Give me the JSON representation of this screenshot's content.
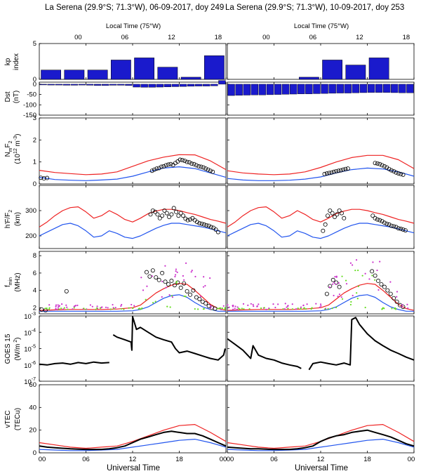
{
  "figure": {
    "titles": [
      "La Serena (29.9°S; 71.3°W), 06-09-2017, doy 249",
      "La Serena (29.9°S; 71.3°W), 10-09-2017, doy 253"
    ],
    "top_axis_label": "Local Time (75°W)",
    "top_ticks": [
      "00",
      "06",
      "12",
      "18"
    ],
    "bottom_ticks": [
      "00",
      "06",
      "12",
      "18",
      "00"
    ],
    "xlabel": "Universal Time"
  },
  "ylabels": {
    "kp": [
      "kp",
      "index"
    ],
    "dst": [
      "Dst",
      "(nT)"
    ],
    "nmf2": [
      "N",
      "m",
      "F",
      "2",
      "(10",
      "12",
      " m",
      "-3",
      ")"
    ],
    "hmf2": [
      "h'F/F",
      "2",
      "(km)"
    ],
    "fmin": [
      "f",
      "min",
      "(MHz)"
    ],
    "goes": [
      "GOES 15",
      "(W/m",
      " 2",
      ")"
    ],
    "vtec": [
      "vTEC",
      "(TECu)"
    ]
  },
  "colors": {
    "bar": "#1a1acc",
    "model_max": "#ee2222",
    "model_min": "#2255ee",
    "obs": "#000000",
    "scatter_magenta": "#cc33cc",
    "scatter_green": "#66dd22"
  },
  "chart_data": [
    {
      "panel": "kp",
      "type": "bar",
      "ylim": [
        0,
        5
      ],
      "yticks": [
        "0",
        "5"
      ],
      "x_hours": [
        1.5,
        4.5,
        7.5,
        10.5,
        13.5,
        16.5,
        19.5,
        22.5
      ],
      "day249": [
        1.3,
        1.3,
        1.3,
        2.7,
        3.0,
        1.7,
        0.3,
        3.3
      ],
      "day253": [
        0,
        0,
        0,
        0.3,
        2.7,
        2.0,
        3.0,
        0
      ]
    },
    {
      "panel": "dst",
      "type": "bar",
      "ylim": [
        -150,
        10
      ],
      "yticks": [
        "0",
        "-50",
        "-100",
        "-150"
      ],
      "x_hours": [
        0.5,
        1.5,
        2.5,
        3.5,
        4.5,
        5.5,
        6.5,
        7.5,
        8.5,
        9.5,
        10.5,
        11.5,
        12.5,
        13.5,
        14.5,
        15.5,
        16.5,
        17.5,
        18.5,
        19.5,
        20.5,
        21.5,
        22.5,
        23.5
      ],
      "day249": [
        -3,
        -4,
        -4,
        -5,
        -5,
        -4,
        -5,
        -6,
        -6,
        -5,
        -5,
        -6,
        -14,
        -15,
        -15,
        -14,
        -13,
        -12,
        -11,
        -10,
        -9,
        -9,
        -8,
        18
      ],
      "day253": [
        -55,
        -54,
        -53,
        -52,
        -52,
        -51,
        -50,
        -49,
        -48,
        -47,
        -47,
        -46,
        -45,
        -44,
        -43,
        -43,
        -42,
        -41,
        -40,
        -40,
        -40,
        -41,
        -42,
        -42
      ]
    },
    {
      "panel": "nmf2",
      "type": "line+scatter",
      "ylim": [
        0,
        3
      ],
      "yticks": [
        "0",
        "1",
        "2",
        "3"
      ],
      "model_hours": [
        0,
        2,
        4,
        6,
        8,
        10,
        12,
        14,
        16,
        18,
        20,
        22,
        24
      ],
      "day249": {
        "model_max": [
          0.62,
          0.52,
          0.47,
          0.42,
          0.45,
          0.55,
          0.8,
          1.05,
          1.22,
          1.33,
          1.32,
          1.05,
          0.65
        ],
        "model_min": [
          0.3,
          0.2,
          0.17,
          0.15,
          0.18,
          0.22,
          0.35,
          0.55,
          0.72,
          0.78,
          0.7,
          0.5,
          0.3
        ],
        "obs_hours": [
          0.2,
          0.6,
          1.0,
          14.5,
          14.8,
          15.1,
          15.4,
          15.7,
          16.0,
          16.3,
          16.6,
          16.9,
          17.2,
          17.5,
          17.8,
          18.1,
          18.4,
          18.7,
          19.0,
          19.3,
          19.6,
          19.9,
          20.2,
          20.5,
          20.8,
          21.1,
          21.4,
          21.7,
          22.0,
          22.3
        ],
        "obs_values": [
          0.28,
          0.25,
          0.27,
          0.6,
          0.65,
          0.7,
          0.72,
          0.78,
          0.8,
          0.85,
          0.88,
          0.9,
          0.86,
          0.95,
          1.02,
          1.1,
          1.08,
          1.05,
          1.0,
          0.98,
          0.92,
          0.9,
          0.85,
          0.8,
          0.78,
          0.75,
          0.7,
          0.65,
          0.6,
          0.55
        ]
      },
      "day253": {
        "model_max": [
          0.6,
          0.5,
          0.45,
          0.42,
          0.45,
          0.55,
          0.75,
          1.0,
          1.2,
          1.3,
          1.3,
          1.1,
          0.7
        ],
        "model_min": [
          0.25,
          0.18,
          0.15,
          0.15,
          0.17,
          0.22,
          0.32,
          0.5,
          0.65,
          0.72,
          0.68,
          0.55,
          0.35
        ],
        "obs_hours": [
          12.5,
          12.8,
          13.1,
          13.4,
          13.7,
          14.0,
          14.3,
          14.6,
          14.9,
          15.2,
          15.5,
          19.0,
          19.3,
          19.6,
          19.9,
          20.2,
          20.5,
          20.8,
          21.1,
          21.4,
          21.7,
          22.0,
          22.3,
          22.6
        ],
        "obs_values": [
          0.45,
          0.48,
          0.5,
          0.52,
          0.55,
          0.58,
          0.6,
          0.62,
          0.65,
          0.68,
          0.7,
          0.95,
          0.93,
          0.9,
          0.85,
          0.8,
          0.75,
          0.68,
          0.62,
          0.58,
          0.52,
          0.48,
          0.45,
          0.42
        ]
      }
    },
    {
      "panel": "hmf2",
      "type": "line+scatter",
      "ylim": [
        150,
        400
      ],
      "yticks": [
        "200",
        "300"
      ],
      "model_hours": [
        0,
        1,
        2,
        3,
        4,
        5,
        6,
        7,
        8,
        9,
        10,
        11,
        12,
        13,
        14,
        15,
        16,
        17,
        18,
        19,
        20,
        21,
        22,
        23,
        24
      ],
      "day249": {
        "model_max": [
          235,
          255,
          280,
          300,
          312,
          315,
          295,
          270,
          280,
          300,
          285,
          265,
          255,
          270,
          288,
          298,
          305,
          305,
          300,
          292,
          285,
          275,
          265,
          258,
          250
        ],
        "model_min": [
          200,
          215,
          230,
          245,
          250,
          240,
          220,
          195,
          200,
          220,
          210,
          195,
          190,
          200,
          215,
          230,
          242,
          250,
          250,
          245,
          240,
          235,
          228,
          220,
          212
        ],
        "obs_hours": [
          14.3,
          14.6,
          14.9,
          15.2,
          15.5,
          15.8,
          16.1,
          16.4,
          16.7,
          17.0,
          17.3,
          17.6,
          17.9,
          18.2,
          18.5,
          18.8,
          19.1,
          19.4,
          19.7,
          20.0,
          20.3,
          20.6,
          20.9,
          21.2,
          21.5,
          21.8,
          22.1,
          22.4,
          22.7,
          23.0
        ],
        "obs_values": [
          285,
          300,
          295,
          285,
          270,
          280,
          300,
          290,
          275,
          285,
          310,
          295,
          280,
          290,
          280,
          268,
          262,
          265,
          270,
          262,
          255,
          250,
          248,
          245,
          242,
          240,
          235,
          232,
          225,
          215
        ]
      },
      "day253": {
        "model_max": [
          235,
          255,
          280,
          300,
          312,
          315,
          295,
          270,
          280,
          300,
          285,
          265,
          255,
          270,
          288,
          298,
          305,
          305,
          300,
          292,
          285,
          275,
          265,
          258,
          250
        ],
        "model_min": [
          200,
          215,
          230,
          245,
          250,
          240,
          220,
          195,
          200,
          220,
          210,
          195,
          190,
          200,
          215,
          230,
          242,
          250,
          250,
          245,
          240,
          235,
          228,
          220,
          212
        ],
        "obs_hours": [
          12.3,
          12.6,
          12.9,
          13.2,
          13.5,
          13.8,
          14.1,
          14.4,
          14.7,
          15.0,
          18.7,
          19.0,
          19.3,
          19.6,
          19.9,
          20.2,
          20.5,
          20.8,
          21.1,
          21.4,
          21.7,
          22.0,
          22.3,
          22.6,
          22.9
        ],
        "obs_values": [
          220,
          245,
          280,
          300,
          290,
          275,
          285,
          300,
          290,
          270,
          280,
          270,
          265,
          262,
          258,
          252,
          248,
          245,
          240,
          238,
          235,
          230,
          228,
          225,
          222
        ]
      }
    },
    {
      "panel": "fmin",
      "type": "line+scatter",
      "ylim": [
        1.3,
        8.5
      ],
      "yticks": [
        "2",
        "4",
        "6",
        "8"
      ],
      "model_hours": [
        0,
        2,
        4,
        6,
        8,
        10,
        12,
        13,
        14,
        15,
        16,
        17,
        18,
        19,
        20,
        21,
        22,
        23,
        24
      ],
      "day249": {
        "model_max": [
          1.7,
          1.75,
          1.8,
          1.8,
          1.8,
          1.85,
          2.0,
          2.3,
          3.0,
          3.7,
          4.2,
          4.6,
          4.8,
          4.7,
          4.0,
          3.2,
          2.4,
          1.9,
          1.7
        ],
        "model_min": [
          1.6,
          1.6,
          1.6,
          1.6,
          1.6,
          1.6,
          1.65,
          1.8,
          2.1,
          2.6,
          3.1,
          3.4,
          3.5,
          3.2,
          2.6,
          2.1,
          1.8,
          1.6,
          1.6
        ],
        "obs_hours": [
          0.3,
          0.8,
          3.5,
          13.8,
          14.2,
          14.6,
          15.0,
          15.4,
          15.8,
          16.2,
          16.6,
          17.0,
          17.4,
          17.8,
          18.2,
          18.6,
          19.0,
          19.4,
          19.8,
          20.2,
          20.6,
          21.0,
          21.4,
          21.8,
          22.2,
          22.6
        ],
        "obs_values": [
          1.8,
          1.7,
          3.9,
          6.1,
          5.6,
          6.3,
          5.5,
          5.2,
          6.0,
          5.0,
          4.7,
          5.1,
          4.6,
          4.9,
          4.3,
          4.8,
          3.9,
          3.5,
          4.0,
          3.2,
          3.0,
          2.7,
          2.5,
          2.2,
          2.0,
          1.9
        ]
      },
      "day253": {
        "model_max": [
          1.7,
          1.75,
          1.8,
          1.8,
          1.8,
          1.85,
          2.0,
          2.3,
          3.0,
          3.7,
          4.2,
          4.6,
          4.8,
          4.7,
          4.0,
          3.2,
          2.4,
          1.9,
          1.7
        ],
        "model_min": [
          1.6,
          1.6,
          1.6,
          1.6,
          1.6,
          1.6,
          1.65,
          1.8,
          2.1,
          2.6,
          3.1,
          3.4,
          3.5,
          3.2,
          2.6,
          2.1,
          1.8,
          1.6,
          1.6
        ],
        "obs_hours": [
          12.8,
          13.2,
          13.6,
          14.0,
          14.4,
          18.6,
          19.0,
          19.4,
          19.8,
          20.2,
          20.6,
          21.0,
          21.4,
          21.8,
          22.2,
          22.6
        ],
        "obs_values": [
          3.6,
          4.5,
          5.2,
          4.9,
          4.4,
          6.2,
          5.7,
          5.1,
          4.7,
          4.4,
          4.0,
          3.6,
          3.1,
          2.7,
          2.3,
          2.1
        ]
      }
    },
    {
      "panel": "goes",
      "type": "line",
      "yscale": "log",
      "ylim": [
        1e-07,
        0.001
      ],
      "yticks": [
        "10-7",
        "10-6",
        "10-5",
        "10-4",
        "10-3"
      ],
      "day249": {
        "segments": [
          {
            "hours": [
              0,
              1,
              2,
              3,
              4,
              5,
              6,
              7,
              8,
              9
            ],
            "values": [
              1.1e-06,
              1e-06,
              1.2e-06,
              1.3e-06,
              1.1e-06,
              1.4e-06,
              1.2e-06,
              1.5e-06,
              1.3e-06,
              1.4e-06
            ]
          },
          {
            "hours": [
              9.5,
              10,
              11,
              11.8,
              11.9,
              12.0,
              12.5,
              13,
              14,
              15,
              16,
              17,
              17.5,
              18,
              19,
              20,
              21,
              22,
              23,
              23.7,
              23.9
            ],
            "values": [
              7e-05,
              5e-05,
              3.5e-05,
              2.5e-05,
              8e-06,
              0.0009,
              0.00015,
              0.0002,
              0.0001,
              5e-05,
              3.5e-05,
              2.5e-05,
              1e-05,
              5.5e-06,
              7e-06,
              5e-06,
              3.5e-06,
              2.5e-06,
              2e-06,
              4e-06,
              1e-05
            ]
          }
        ]
      },
      "day253": {
        "segments": [
          {
            "hours": [
              0,
              1,
              2,
              3,
              3.3,
              4,
              5,
              6,
              7,
              8,
              9,
              9.5
            ],
            "values": [
              4e-05,
              1.8e-05,
              8e-06,
              2.5e-06,
              1.5e-05,
              4e-06,
              2.5e-06,
              2e-06,
              1.3e-06,
              1e-06,
              8e-07,
              6e-07
            ]
          },
          {
            "hours": [
              10.5,
              11,
              12,
              13,
              14,
              15,
              15.8,
              16.0,
              16.5,
              17,
              18,
              19,
              20,
              21,
              22,
              23,
              24
            ],
            "values": [
              5e-07,
              1.2e-06,
              1.5e-06,
              1.2e-06,
              1e-06,
              1.3e-06,
              1e-06,
              0.0006,
              0.0008,
              0.0003,
              8e-05,
              3e-05,
              1.5e-05,
              8e-06,
              5e-06,
              3e-06,
              2e-06
            ]
          }
        ]
      }
    },
    {
      "panel": "vtec",
      "type": "line",
      "ylim": [
        0,
        60
      ],
      "yticks": [
        "0",
        "20",
        "40",
        "60"
      ],
      "model_hours": [
        0,
        2,
        4,
        6,
        8,
        10,
        12,
        14,
        16,
        18,
        20,
        22,
        24
      ],
      "day249": {
        "model_max": [
          9,
          7,
          5,
          4,
          5,
          6,
          10,
          15,
          20,
          24,
          25,
          18,
          10
        ],
        "model_min": [
          3,
          2.5,
          2,
          2,
          2.5,
          3,
          5,
          7,
          9,
          11,
          12,
          9,
          5
        ],
        "obs_hours": [
          0,
          1,
          2,
          3,
          4,
          5,
          6,
          7,
          8,
          9,
          10,
          11,
          12,
          13,
          14,
          15,
          16,
          17,
          18,
          19,
          20,
          21,
          22,
          23,
          24
        ],
        "obs_values": [
          6,
          5,
          4.5,
          4,
          3.5,
          3.2,
          3,
          3,
          3,
          3.5,
          4.5,
          6,
          9,
          12,
          14,
          16,
          18,
          19,
          18,
          17,
          17,
          15,
          12,
          9,
          6
        ]
      },
      "day253": {
        "model_max": [
          9,
          7,
          5,
          4,
          5,
          6,
          10,
          15,
          20,
          24,
          25,
          18,
          10
        ],
        "model_min": [
          3,
          2.5,
          2,
          2,
          2.5,
          3,
          5,
          7,
          9,
          11,
          12,
          9,
          5
        ],
        "obs_hours": [
          0,
          1,
          2,
          3,
          4,
          5,
          6,
          7,
          8,
          9,
          10,
          11,
          12,
          13,
          14,
          15,
          16,
          17,
          18,
          19,
          20,
          21,
          22,
          23,
          24
        ],
        "obs_values": [
          5,
          4.5,
          4,
          3.5,
          3.5,
          3.2,
          3,
          3,
          3,
          3.5,
          4.5,
          6,
          10,
          13,
          15,
          16,
          18,
          19,
          20,
          18,
          16,
          14,
          11,
          8,
          6
        ]
      }
    }
  ]
}
